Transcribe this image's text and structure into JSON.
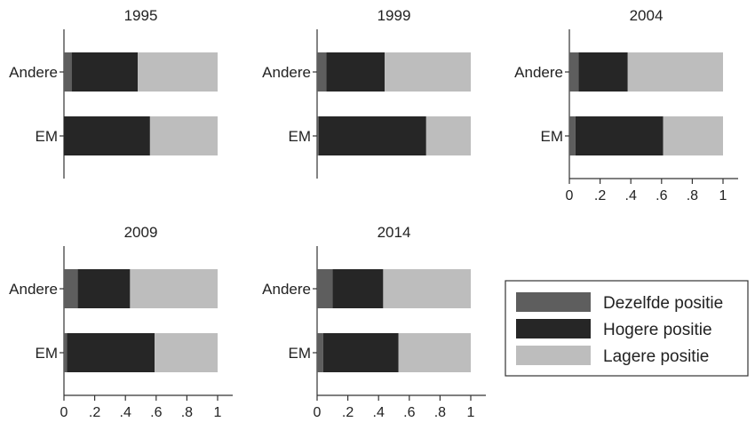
{
  "chart_data": {
    "type": "bar",
    "stacked": true,
    "orientation": "horizontal",
    "xlim": [
      0,
      1
    ],
    "x_ticks": [
      "0",
      ".2",
      ".4",
      ".6",
      ".8",
      "1"
    ],
    "categories": [
      "Andere",
      "EM"
    ],
    "legend": {
      "placement": "bottom-right",
      "entries": [
        "Dezelfde positie",
        "Hogere positie",
        "Lagere positie"
      ]
    },
    "colors": {
      "Dezelfde positie": "#5e5e5e",
      "Hogere positie": "#262626",
      "Lagere positie": "#bdbdbd"
    },
    "panels": [
      {
        "title": "1995",
        "show_x_axis": false,
        "series": [
          {
            "name": "Dezelfde positie",
            "values": [
              0.05,
              0.0
            ]
          },
          {
            "name": "Hogere positie",
            "values": [
              0.43,
              0.56
            ]
          },
          {
            "name": "Lagere positie",
            "values": [
              0.52,
              0.44
            ]
          }
        ]
      },
      {
        "title": "1999",
        "show_x_axis": false,
        "series": [
          {
            "name": "Dezelfde positie",
            "values": [
              0.06,
              0.01
            ]
          },
          {
            "name": "Hogere positie",
            "values": [
              0.38,
              0.7
            ]
          },
          {
            "name": "Lagere positie",
            "values": [
              0.56,
              0.29
            ]
          }
        ]
      },
      {
        "title": "2004",
        "show_x_axis": true,
        "series": [
          {
            "name": "Dezelfde positie",
            "values": [
              0.06,
              0.04
            ]
          },
          {
            "name": "Hogere positie",
            "values": [
              0.32,
              0.57
            ]
          },
          {
            "name": "Lagere positie",
            "values": [
              0.62,
              0.39
            ]
          }
        ]
      },
      {
        "title": "2009",
        "show_x_axis": true,
        "series": [
          {
            "name": "Dezelfde positie",
            "values": [
              0.09,
              0.02
            ]
          },
          {
            "name": "Hogere positie",
            "values": [
              0.34,
              0.57
            ]
          },
          {
            "name": "Lagere positie",
            "values": [
              0.57,
              0.41
            ]
          }
        ]
      },
      {
        "title": "2014",
        "show_x_axis": true,
        "series": [
          {
            "name": "Dezelfde positie",
            "values": [
              0.1,
              0.04
            ]
          },
          {
            "name": "Hogere positie",
            "values": [
              0.33,
              0.49
            ]
          },
          {
            "name": "Lagere positie",
            "values": [
              0.57,
              0.47
            ]
          }
        ]
      }
    ]
  }
}
